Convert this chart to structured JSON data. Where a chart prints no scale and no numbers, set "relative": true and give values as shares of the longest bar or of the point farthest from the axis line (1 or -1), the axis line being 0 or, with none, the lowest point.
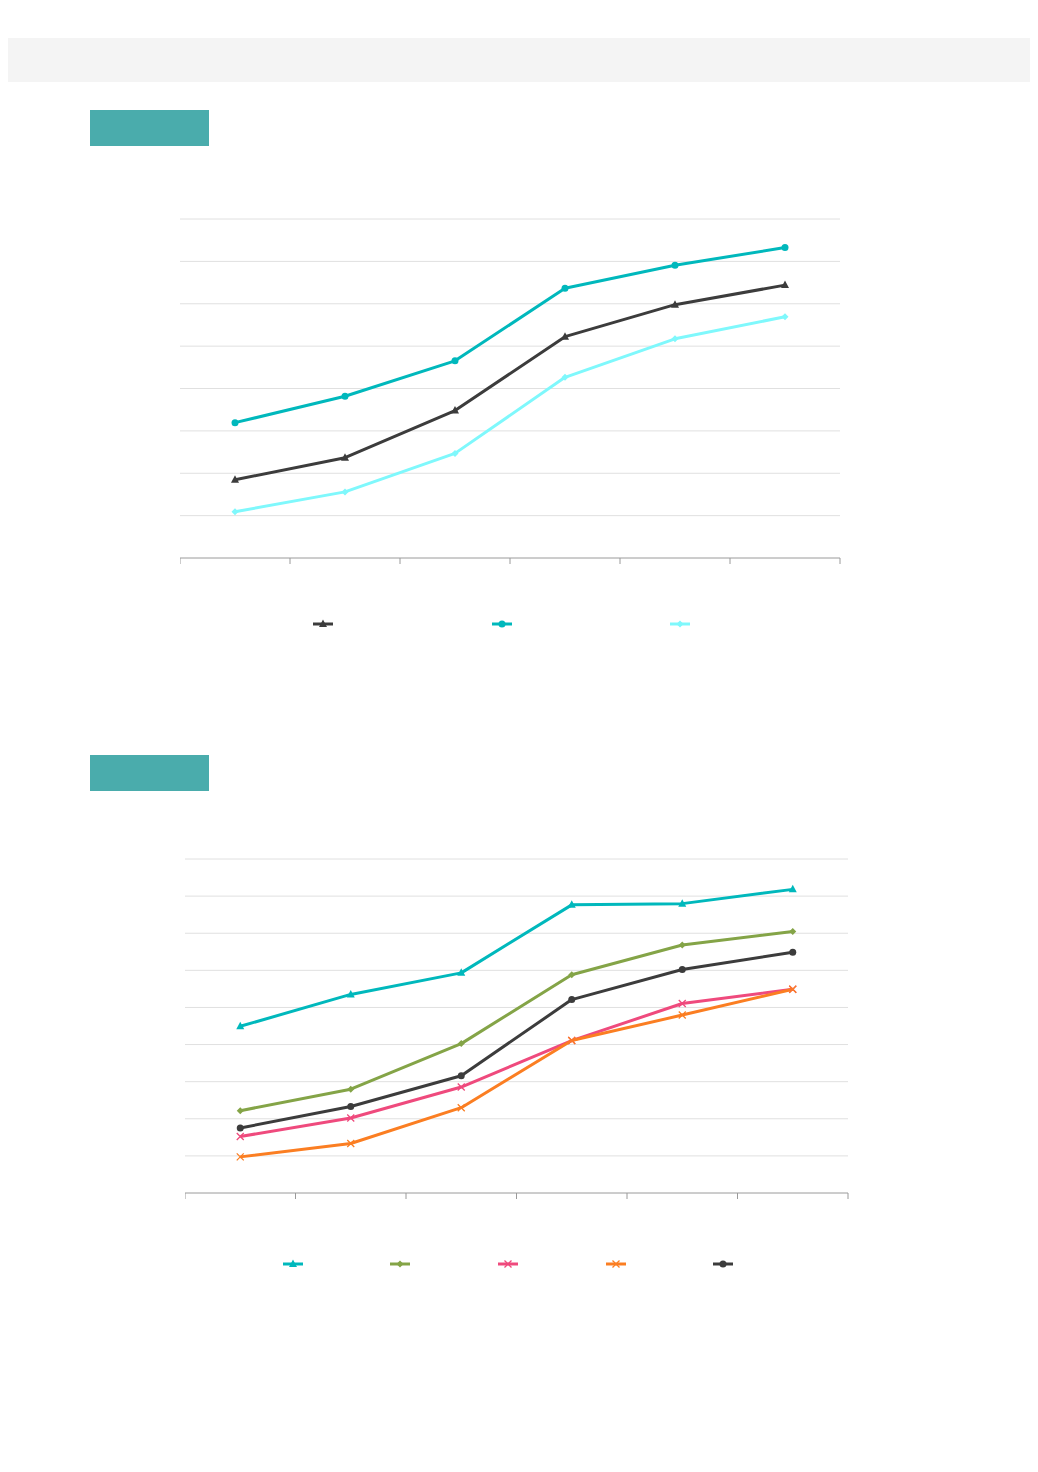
{
  "chart_data": [
    {
      "type": "line",
      "relative": true,
      "categories": [
        null,
        null,
        null,
        null,
        null,
        null
      ],
      "grid": "y",
      "series": [
        {
          "color": "#3c3c3c",
          "marker": "triangle",
          "values": [
            0.252,
            0.323,
            0.475,
            0.713,
            0.816,
            0.879
          ]
        },
        {
          "color": "#00b8bc",
          "marker": "circle",
          "values": [
            0.436,
            0.521,
            0.635,
            0.869,
            0.943,
            1
          ]
        },
        {
          "color": "#7ff8fc",
          "marker": "diamond",
          "values": [
            0.149,
            0.213,
            0.337,
            0.582,
            0.706,
            0.777
          ]
        }
      ]
    },
    {
      "type": "line",
      "relative": true,
      "categories": [
        null,
        null,
        null,
        null,
        null,
        null
      ],
      "grid": "y",
      "series": [
        {
          "color": "#00b8bc",
          "marker": "triangle",
          "values": [
            0.549,
            0.654,
            0.725,
            0.949,
            0.953,
            1
          ]
        },
        {
          "color": "#84a447",
          "marker": "diamond",
          "values": [
            0.271,
            0.342,
            0.492,
            0.719,
            0.817,
            0.861
          ]
        },
        {
          "color": "#ef4a7d",
          "marker": "cross",
          "values": [
            0.186,
            0.247,
            0.349,
            0.502,
            0.624,
            0.671
          ]
        },
        {
          "color": "#fb7e22",
          "marker": "cross",
          "values": [
            0.119,
            0.163,
            0.281,
            0.502,
            0.586,
            0.671
          ]
        },
        {
          "color": "#3c3c3c",
          "marker": "circle",
          "values": [
            0.214,
            0.285,
            0.386,
            0.637,
            0.736,
            0.793
          ]
        }
      ]
    }
  ]
}
